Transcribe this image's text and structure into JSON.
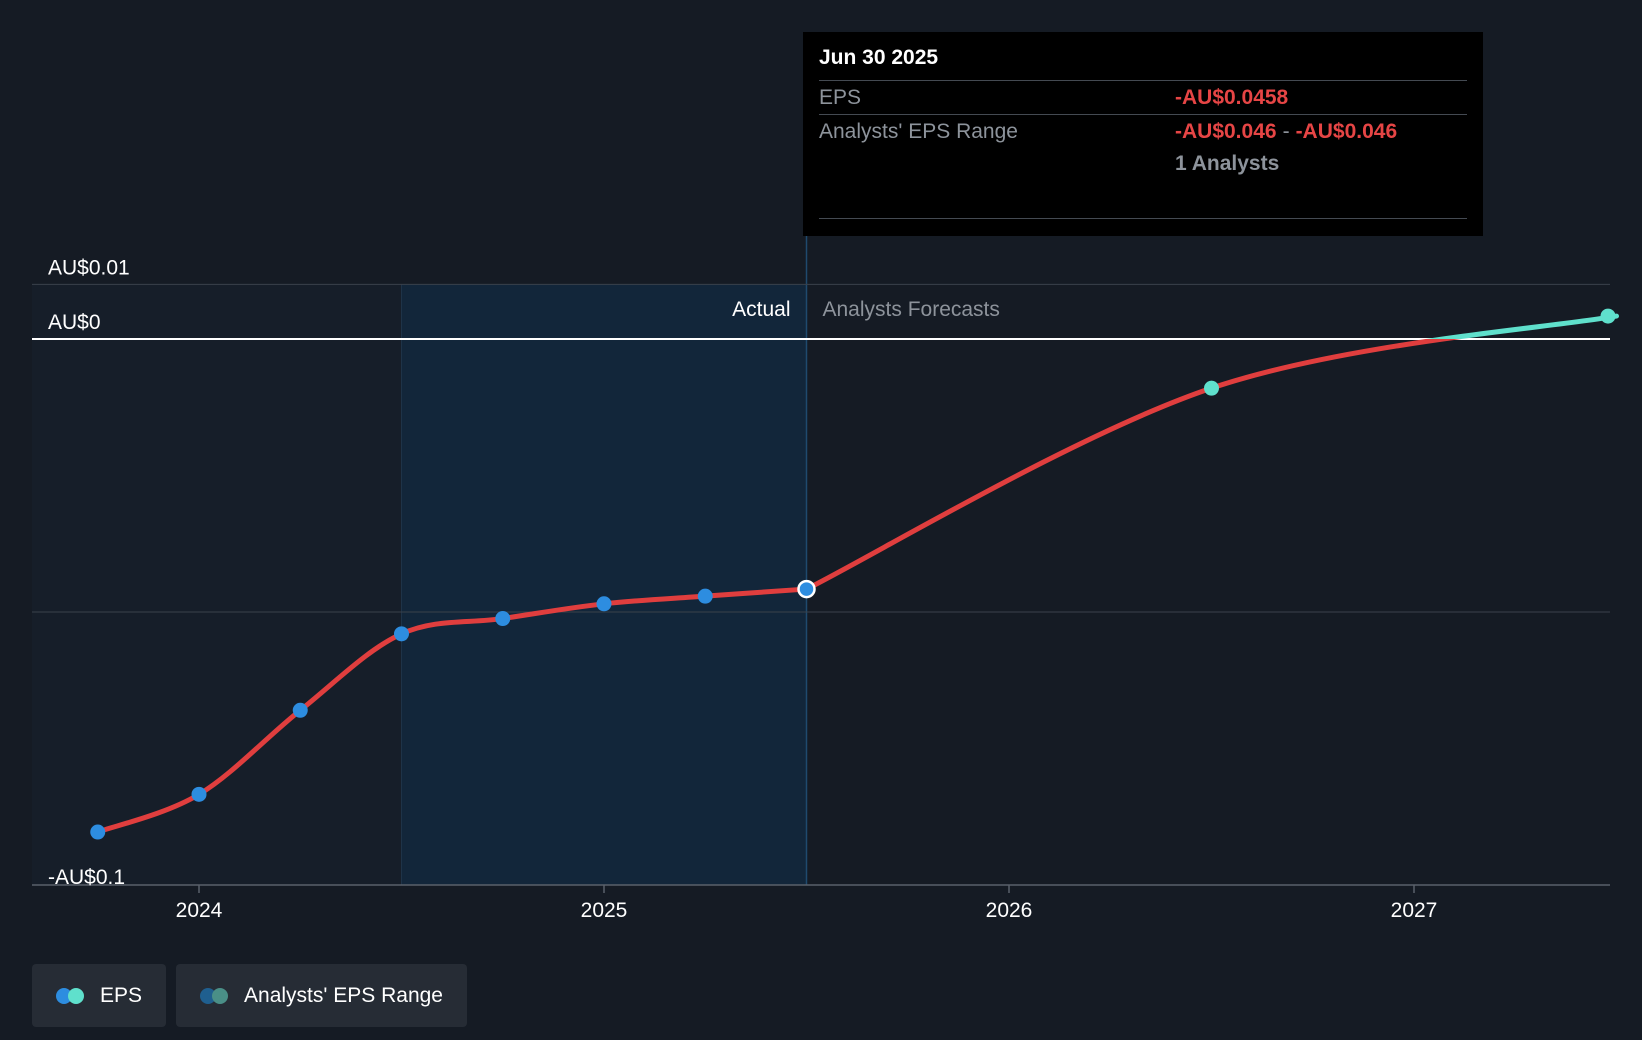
{
  "chart_data": {
    "type": "line",
    "x_axis": {
      "tick_labels": [
        "2024",
        "2025",
        "2026",
        "2027"
      ],
      "tick_values": [
        2024,
        2025,
        2026,
        2027
      ],
      "range": [
        2023.6,
        2027.5
      ]
    },
    "y_axis": {
      "tick_labels": [
        "AU$0.01",
        "AU$0",
        "-AU$0.1"
      ],
      "tick_values": [
        0.01,
        0,
        -0.1
      ],
      "range": [
        -0.1,
        0.01
      ],
      "gridline_values": [
        0.01,
        0,
        -0.05
      ]
    },
    "actual_region": {
      "start": 2024.5,
      "end": 2025.5,
      "label": "Actual"
    },
    "forecast_label": "Analysts Forecasts",
    "series": [
      {
        "name": "EPS",
        "segment": "actual",
        "color": "#e03e3e",
        "points": [
          [
            2023.75,
            -0.0903
          ],
          [
            2024.0,
            -0.0834
          ],
          [
            2024.25,
            -0.068
          ],
          [
            2024.5,
            -0.054
          ],
          [
            2024.75,
            -0.0512
          ],
          [
            2025.0,
            -0.0485
          ],
          [
            2025.25,
            -0.0471
          ],
          [
            2025.5,
            -0.0458
          ]
        ]
      },
      {
        "name": "EPS",
        "segment": "forecast",
        "color": "#e03e3e",
        "forecast_above_zero_color": "#5fe0cc",
        "points": [
          [
            2025.5,
            -0.0458
          ],
          [
            2026.5,
            -0.009
          ],
          [
            2027.5,
            0.0042
          ]
        ]
      }
    ]
  },
  "tooltip": {
    "date": "Jun 30 2025",
    "eps_label": "EPS",
    "eps_value": "-AU$0.0458",
    "range_label": "Analysts' EPS Range",
    "range_low": "-AU$0.046",
    "range_sep": "-",
    "range_high": "-AU$0.046",
    "analysts": "1 Analysts"
  },
  "legend": [
    {
      "label": "EPS",
      "colors": [
        "#2d8de0",
        "#5fe0cc"
      ]
    },
    {
      "label": "Analysts' EPS Range",
      "colors": [
        "#1f5f8f",
        "#4a8f87"
      ]
    }
  ],
  "colors": {
    "background": "#151b24",
    "actual_band": "#12263a",
    "past_band": "#161e29",
    "actual_dot": "#2d8de0",
    "forecast_dot": "#5fe0cc",
    "gridline": "#3a414b",
    "zero_line": "#ffffff"
  }
}
